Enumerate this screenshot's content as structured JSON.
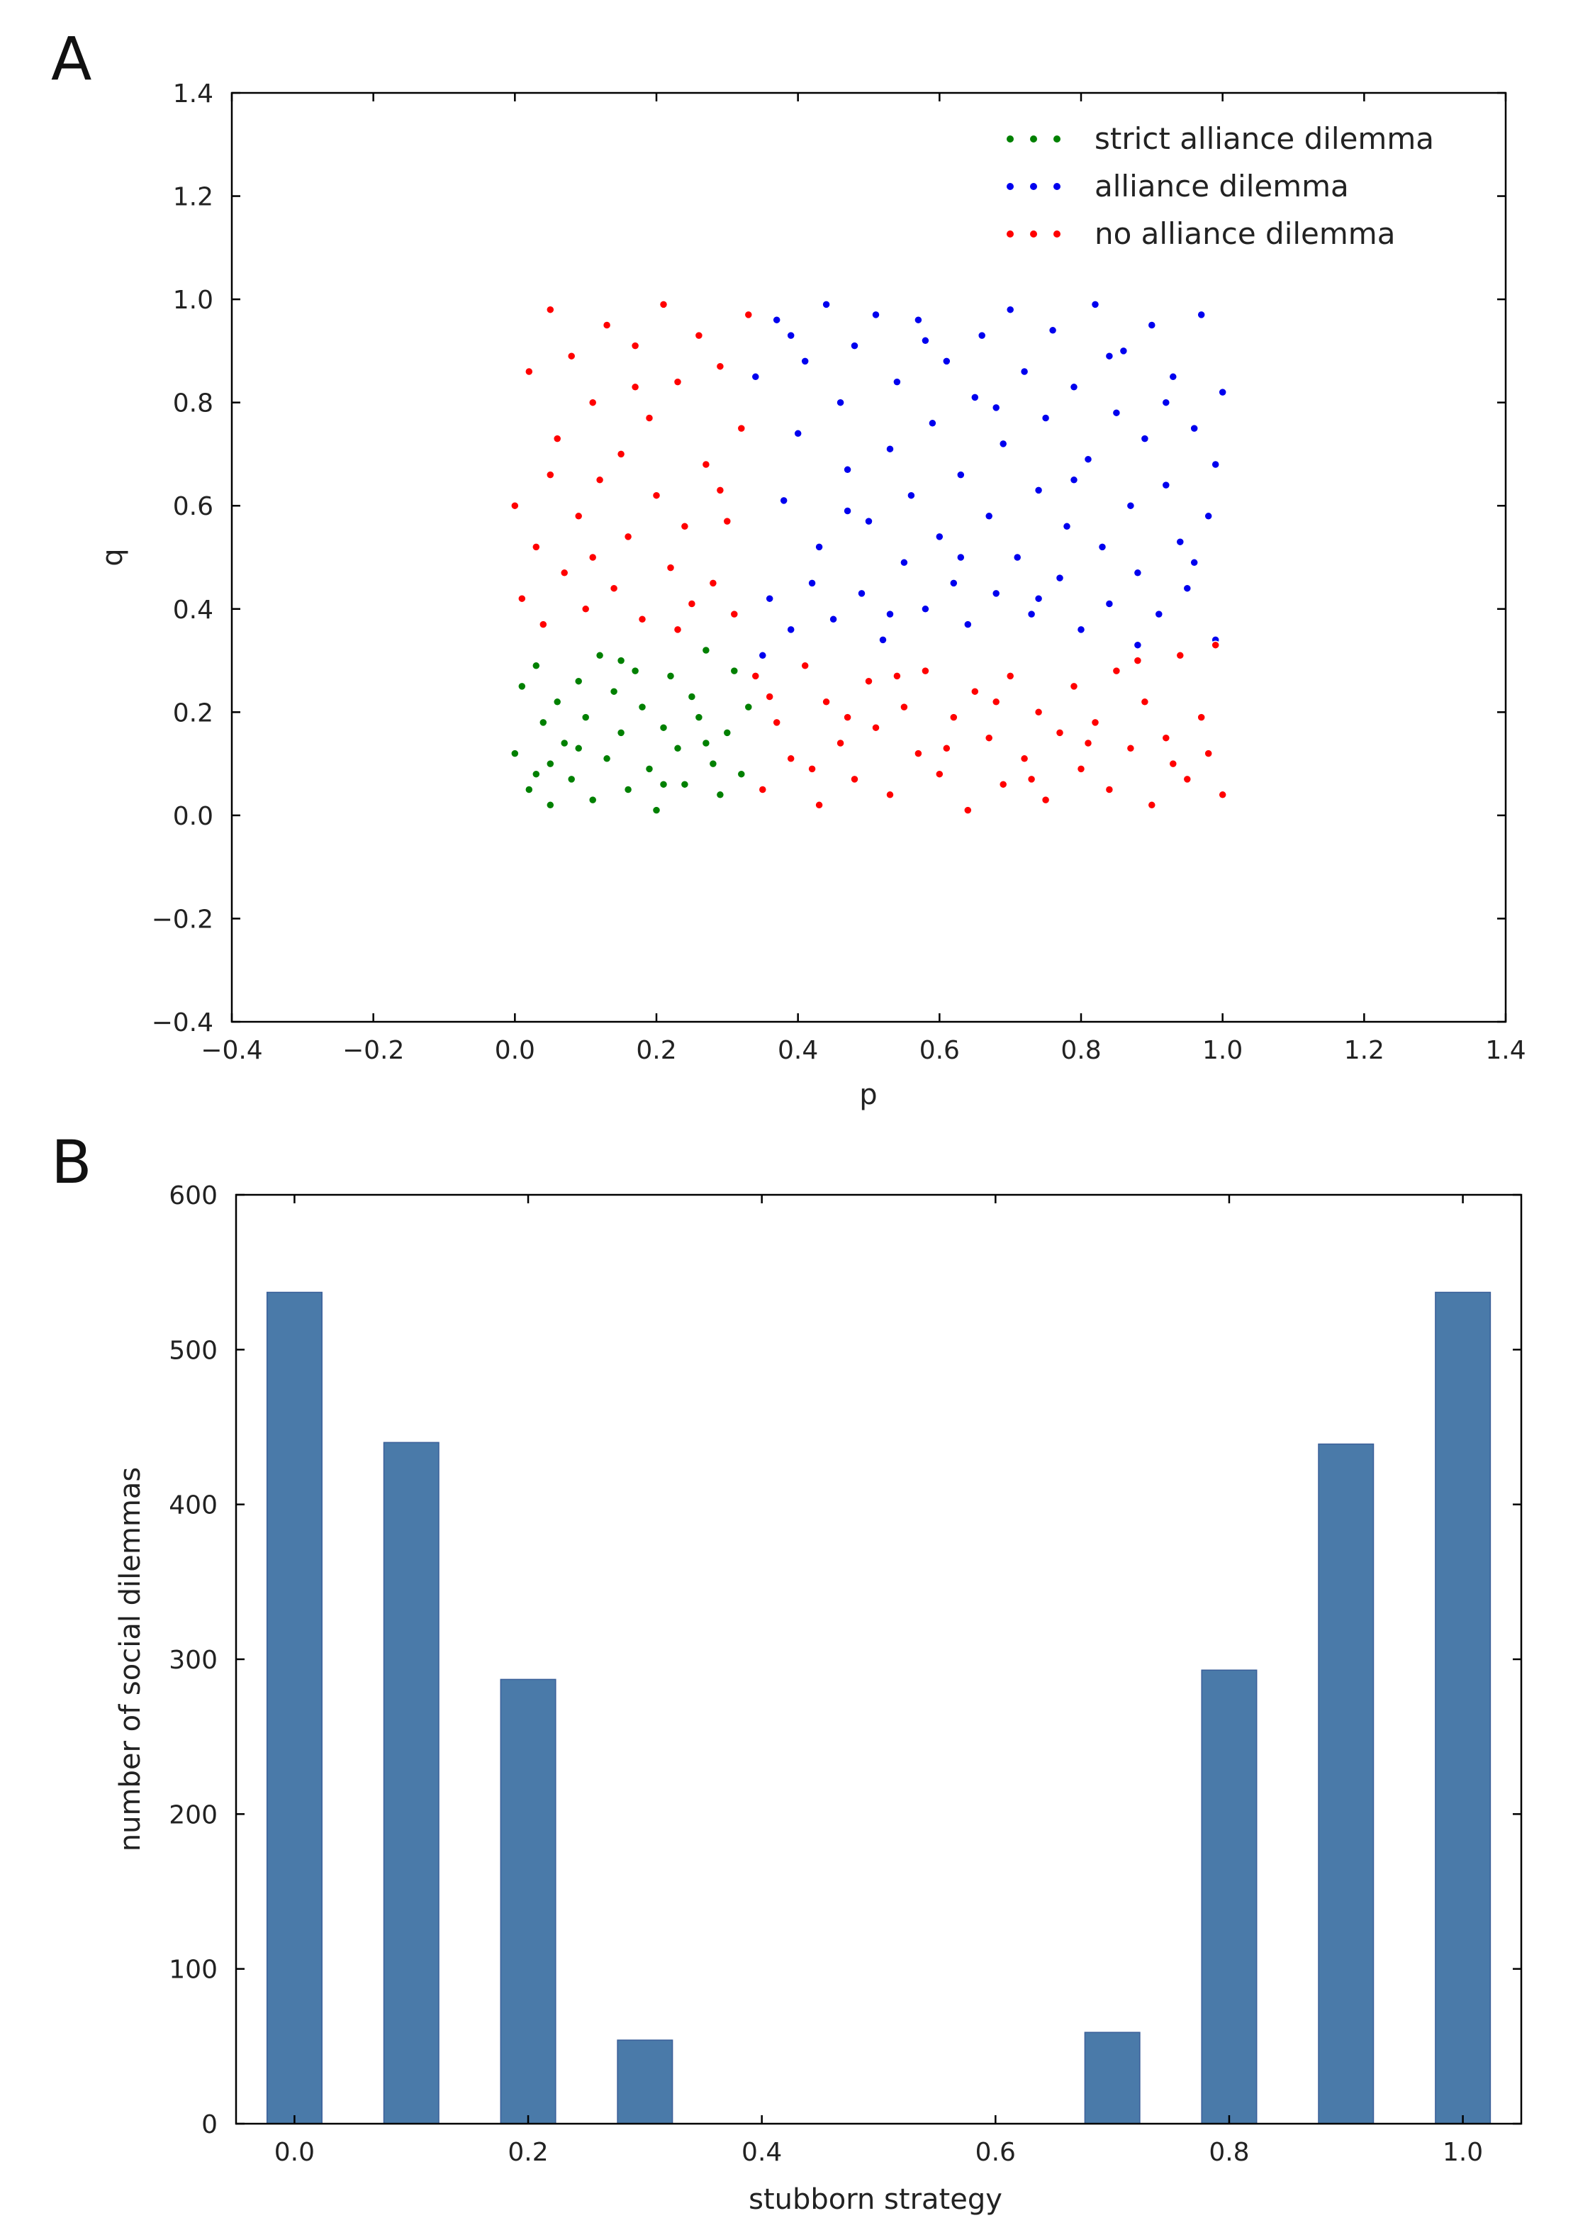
{
  "chart_data": [
    {
      "panel": "A",
      "type": "scatter",
      "xlabel": "p",
      "ylabel": "q",
      "xlim": [
        -0.4,
        1.4
      ],
      "ylim": [
        -0.4,
        1.4
      ],
      "xticks": [
        "−0.4",
        "−0.2",
        "0.0",
        "0.2",
        "0.4",
        "0.6",
        "0.8",
        "1.0",
        "1.2",
        "1.4"
      ],
      "yticks": [
        "−0.4",
        "−0.2",
        "0.0",
        "0.2",
        "0.4",
        "0.6",
        "0.8",
        "1.0",
        "1.2",
        "1.4"
      ],
      "grid": false,
      "legend_position": "top-right",
      "series": [
        {
          "name": "strict alliance dilemma",
          "color": "#008000",
          "points": [
            [
              0.0,
              0.12
            ],
            [
              0.01,
              0.25
            ],
            [
              0.02,
              0.05
            ],
            [
              0.03,
              0.29
            ],
            [
              0.04,
              0.18
            ],
            [
              0.05,
              0.1
            ],
            [
              0.05,
              0.02
            ],
            [
              0.06,
              0.22
            ],
            [
              0.07,
              0.14
            ],
            [
              0.08,
              0.07
            ],
            [
              0.09,
              0.26
            ],
            [
              0.1,
              0.19
            ],
            [
              0.11,
              0.03
            ],
            [
              0.12,
              0.31
            ],
            [
              0.13,
              0.11
            ],
            [
              0.14,
              0.24
            ],
            [
              0.15,
              0.16
            ],
            [
              0.16,
              0.05
            ],
            [
              0.17,
              0.28
            ],
            [
              0.18,
              0.21
            ],
            [
              0.19,
              0.09
            ],
            [
              0.2,
              0.01
            ],
            [
              0.21,
              0.17
            ],
            [
              0.22,
              0.27
            ],
            [
              0.23,
              0.13
            ],
            [
              0.24,
              0.06
            ],
            [
              0.25,
              0.23
            ],
            [
              0.26,
              0.19
            ],
            [
              0.27,
              0.32
            ],
            [
              0.28,
              0.1
            ],
            [
              0.29,
              0.04
            ],
            [
              0.3,
              0.16
            ],
            [
              0.31,
              0.28
            ],
            [
              0.32,
              0.08
            ],
            [
              0.33,
              0.21
            ],
            [
              0.03,
              0.08
            ],
            [
              0.09,
              0.13
            ],
            [
              0.15,
              0.3
            ],
            [
              0.21,
              0.06
            ],
            [
              0.27,
              0.14
            ]
          ]
        },
        {
          "name": "alliance dilemma",
          "color": "#0000ee",
          "points": [
            [
              0.34,
              0.85
            ],
            [
              0.36,
              0.42
            ],
            [
              0.37,
              0.96
            ],
            [
              0.38,
              0.61
            ],
            [
              0.39,
              0.36
            ],
            [
              0.4,
              0.74
            ],
            [
              0.41,
              0.88
            ],
            [
              0.42,
              0.45
            ],
            [
              0.43,
              0.52
            ],
            [
              0.44,
              0.99
            ],
            [
              0.45,
              0.38
            ],
            [
              0.46,
              0.8
            ],
            [
              0.47,
              0.67
            ],
            [
              0.48,
              0.91
            ],
            [
              0.49,
              0.43
            ],
            [
              0.5,
              0.57
            ],
            [
              0.51,
              0.97
            ],
            [
              0.52,
              0.34
            ],
            [
              0.53,
              0.71
            ],
            [
              0.54,
              0.84
            ],
            [
              0.55,
              0.49
            ],
            [
              0.56,
              0.62
            ],
            [
              0.57,
              0.96
            ],
            [
              0.58,
              0.4
            ],
            [
              0.59,
              0.76
            ],
            [
              0.6,
              0.54
            ],
            [
              0.61,
              0.88
            ],
            [
              0.62,
              0.45
            ],
            [
              0.63,
              0.66
            ],
            [
              0.64,
              0.37
            ],
            [
              0.65,
              0.81
            ],
            [
              0.66,
              0.93
            ],
            [
              0.67,
              0.58
            ],
            [
              0.68,
              0.43
            ],
            [
              0.69,
              0.72
            ],
            [
              0.7,
              0.98
            ],
            [
              0.71,
              0.5
            ],
            [
              0.72,
              0.86
            ],
            [
              0.73,
              0.39
            ],
            [
              0.74,
              0.63
            ],
            [
              0.75,
              0.77
            ],
            [
              0.76,
              0.94
            ],
            [
              0.77,
              0.46
            ],
            [
              0.78,
              0.56
            ],
            [
              0.79,
              0.83
            ],
            [
              0.8,
              0.36
            ],
            [
              0.81,
              0.69
            ],
            [
              0.82,
              0.99
            ],
            [
              0.83,
              0.52
            ],
            [
              0.84,
              0.41
            ],
            [
              0.85,
              0.78
            ],
            [
              0.86,
              0.9
            ],
            [
              0.87,
              0.6
            ],
            [
              0.88,
              0.47
            ],
            [
              0.89,
              0.73
            ],
            [
              0.9,
              0.95
            ],
            [
              0.91,
              0.39
            ],
            [
              0.92,
              0.64
            ],
            [
              0.93,
              0.85
            ],
            [
              0.94,
              0.53
            ],
            [
              0.95,
              0.44
            ],
            [
              0.96,
              0.75
            ],
            [
              0.97,
              0.97
            ],
            [
              0.98,
              0.58
            ],
            [
              0.99,
              0.34
            ],
            [
              1.0,
              0.82
            ],
            [
              0.35,
              0.31
            ],
            [
              0.39,
              0.93
            ],
            [
              0.47,
              0.59
            ],
            [
              0.53,
              0.39
            ],
            [
              0.58,
              0.92
            ],
            [
              0.63,
              0.5
            ],
            [
              0.68,
              0.79
            ],
            [
              0.74,
              0.42
            ],
            [
              0.79,
              0.65
            ],
            [
              0.84,
              0.89
            ],
            [
              0.88,
              0.33
            ],
            [
              0.92,
              0.8
            ],
            [
              0.96,
              0.49
            ],
            [
              0.99,
              0.68
            ]
          ]
        },
        {
          "name": "no alliance dilemma",
          "color": "#ff0000",
          "points": [
            [
              0.0,
              0.6
            ],
            [
              0.01,
              0.42
            ],
            [
              0.02,
              0.86
            ],
            [
              0.03,
              0.52
            ],
            [
              0.04,
              0.37
            ],
            [
              0.05,
              0.98
            ],
            [
              0.06,
              0.73
            ],
            [
              0.07,
              0.47
            ],
            [
              0.08,
              0.89
            ],
            [
              0.09,
              0.58
            ],
            [
              0.1,
              0.4
            ],
            [
              0.11,
              0.8
            ],
            [
              0.12,
              0.65
            ],
            [
              0.13,
              0.95
            ],
            [
              0.14,
              0.44
            ],
            [
              0.15,
              0.7
            ],
            [
              0.16,
              0.54
            ],
            [
              0.17,
              0.91
            ],
            [
              0.18,
              0.38
            ],
            [
              0.19,
              0.77
            ],
            [
              0.2,
              0.62
            ],
            [
              0.21,
              0.99
            ],
            [
              0.22,
              0.48
            ],
            [
              0.23,
              0.84
            ],
            [
              0.24,
              0.56
            ],
            [
              0.25,
              0.41
            ],
            [
              0.26,
              0.93
            ],
            [
              0.27,
              0.68
            ],
            [
              0.28,
              0.45
            ],
            [
              0.29,
              0.87
            ],
            [
              0.3,
              0.57
            ],
            [
              0.31,
              0.39
            ],
            [
              0.32,
              0.75
            ],
            [
              0.33,
              0.97
            ],
            [
              0.05,
              0.66
            ],
            [
              0.11,
              0.5
            ],
            [
              0.17,
              0.83
            ],
            [
              0.23,
              0.36
            ],
            [
              0.29,
              0.63
            ],
            [
              0.34,
              0.27
            ],
            [
              0.35,
              0.05
            ],
            [
              0.37,
              0.18
            ],
            [
              0.39,
              0.11
            ],
            [
              0.41,
              0.29
            ],
            [
              0.43,
              0.02
            ],
            [
              0.44,
              0.22
            ],
            [
              0.46,
              0.14
            ],
            [
              0.48,
              0.07
            ],
            [
              0.5,
              0.26
            ],
            [
              0.51,
              0.17
            ],
            [
              0.53,
              0.04
            ],
            [
              0.55,
              0.21
            ],
            [
              0.57,
              0.12
            ],
            [
              0.58,
              0.28
            ],
            [
              0.6,
              0.08
            ],
            [
              0.62,
              0.19
            ],
            [
              0.64,
              0.01
            ],
            [
              0.65,
              0.24
            ],
            [
              0.67,
              0.15
            ],
            [
              0.69,
              0.06
            ],
            [
              0.7,
              0.27
            ],
            [
              0.72,
              0.11
            ],
            [
              0.74,
              0.2
            ],
            [
              0.75,
              0.03
            ],
            [
              0.77,
              0.16
            ],
            [
              0.79,
              0.25
            ],
            [
              0.8,
              0.09
            ],
            [
              0.82,
              0.18
            ],
            [
              0.84,
              0.05
            ],
            [
              0.85,
              0.28
            ],
            [
              0.87,
              0.13
            ],
            [
              0.89,
              0.22
            ],
            [
              0.9,
              0.02
            ],
            [
              0.92,
              0.15
            ],
            [
              0.94,
              0.31
            ],
            [
              0.95,
              0.07
            ],
            [
              0.97,
              0.19
            ],
            [
              0.98,
              0.12
            ],
            [
              1.0,
              0.04
            ],
            [
              0.36,
              0.23
            ],
            [
              0.42,
              0.09
            ],
            [
              0.47,
              0.19
            ],
            [
              0.54,
              0.27
            ],
            [
              0.61,
              0.13
            ],
            [
              0.68,
              0.22
            ],
            [
              0.73,
              0.07
            ],
            [
              0.81,
              0.14
            ],
            [
              0.88,
              0.3
            ],
            [
              0.93,
              0.1
            ],
            [
              0.99,
              0.33
            ]
          ]
        }
      ]
    },
    {
      "panel": "B",
      "type": "bar",
      "xlabel": "stubborn strategy",
      "ylabel": "number of social dilemmas",
      "xlim": [
        -0.05,
        1.05
      ],
      "ylim": [
        0,
        600
      ],
      "xticks": [
        "0.0",
        "0.2",
        "0.4",
        "0.6",
        "0.8",
        "1.0"
      ],
      "yticks": [
        "0",
        "100",
        "200",
        "300",
        "400",
        "500",
        "600"
      ],
      "grid": false,
      "color": "#4a7aa9",
      "x": [
        0.0,
        0.1,
        0.2,
        0.3,
        0.7,
        0.8,
        0.9,
        1.0
      ],
      "values": [
        537,
        440,
        287,
        54,
        59,
        293,
        439,
        537
      ]
    }
  ],
  "panel_labels": [
    "A",
    "B"
  ]
}
